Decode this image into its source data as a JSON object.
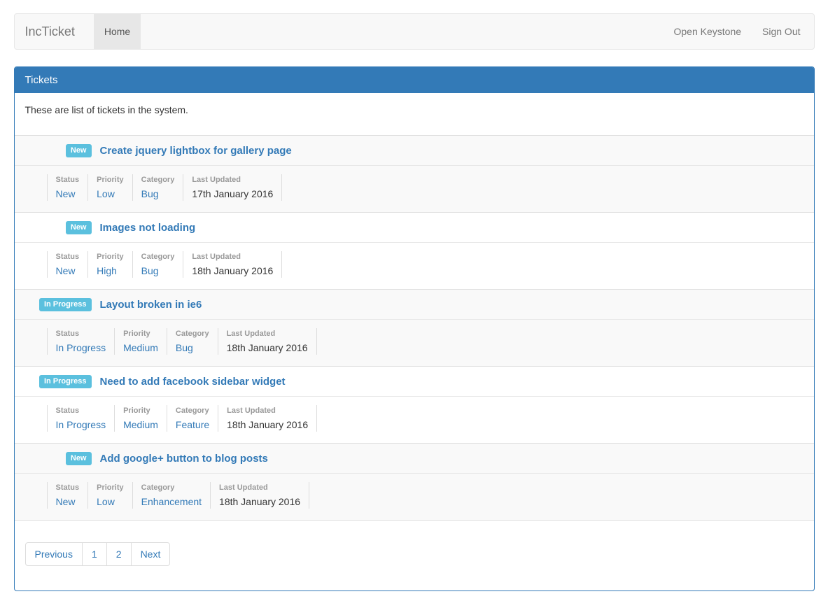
{
  "navbar": {
    "brand": "IncTicket",
    "home": "Home",
    "open_keystone": "Open Keystone",
    "sign_out": "Sign Out"
  },
  "panel": {
    "title": "Tickets",
    "intro": "These are list of tickets in the system."
  },
  "labels": {
    "status": "Status",
    "priority": "Priority",
    "category": "Category",
    "last_updated": "Last Updated"
  },
  "tickets": [
    {
      "badge": "New",
      "title": "Create jquery lightbox for gallery page",
      "status": "New",
      "priority": "Low",
      "category": "Bug",
      "last_updated": "17th January 2016"
    },
    {
      "badge": "New",
      "title": "Images not loading",
      "status": "New",
      "priority": "High",
      "category": "Bug",
      "last_updated": "18th January 2016"
    },
    {
      "badge": "In Progress",
      "title": "Layout broken in ie6",
      "status": "In Progress",
      "priority": "Medium",
      "category": "Bug",
      "last_updated": "18th January 2016"
    },
    {
      "badge": "In Progress",
      "title": "Need to add facebook sidebar widget",
      "status": "In Progress",
      "priority": "Medium",
      "category": "Feature",
      "last_updated": "18th January 2016"
    },
    {
      "badge": "New",
      "title": "Add google+ button to blog posts",
      "status": "New",
      "priority": "Low",
      "category": "Enhancement",
      "last_updated": "18th January 2016"
    }
  ],
  "pagination": {
    "previous": "Previous",
    "page1": "1",
    "page2": "2",
    "next": "Next"
  },
  "colors": {
    "accent": "#337ab7",
    "badge_info": "#5bc0de",
    "navbar_bg": "#f8f8f8",
    "navbar_active_bg": "#e7e7e7",
    "stripe_bg": "#f9f9f9"
  }
}
